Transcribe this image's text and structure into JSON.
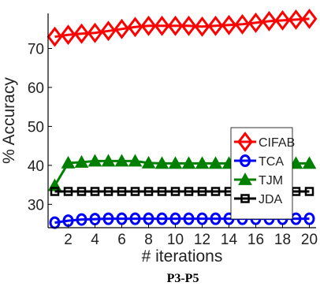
{
  "chart_data": {
    "type": "line",
    "title": "",
    "caption": "P3-P5",
    "xlabel": "# iterations",
    "ylabel": "% Accuracy",
    "xlim": [
      0.5,
      20.5
    ],
    "ylim": [
      24,
      79
    ],
    "x": [
      1,
      2,
      3,
      4,
      5,
      6,
      7,
      8,
      9,
      10,
      11,
      12,
      13,
      14,
      15,
      16,
      17,
      18,
      19,
      20
    ],
    "xticks": [
      2,
      4,
      6,
      8,
      10,
      12,
      14,
      16,
      18,
      20
    ],
    "yticks": [
      30,
      40,
      50,
      60,
      70
    ],
    "grid": false,
    "legend_position": "lower-right",
    "series": [
      {
        "name": "CIFAB",
        "color": "#ff0000",
        "marker": "diamond",
        "values": [
          73,
          73.5,
          73.8,
          74,
          74.5,
          75,
          75.5,
          75.8,
          75.8,
          75.8,
          75.8,
          75.6,
          75.8,
          76,
          76.2,
          76.6,
          77,
          77.2,
          77.4,
          77.6
        ]
      },
      {
        "name": "TCA",
        "color": "#0000ff",
        "marker": "circle",
        "values": [
          25.3,
          25.8,
          26.1,
          26.2,
          26.3,
          26.3,
          26.3,
          26.3,
          26.3,
          26.3,
          26.3,
          26.3,
          26.3,
          26.3,
          26.3,
          26.3,
          26.3,
          26.3,
          26.3,
          26.3
        ]
      },
      {
        "name": "TJM",
        "color": "#008000",
        "marker": "triangle",
        "values": [
          34.8,
          40.6,
          40.8,
          41.1,
          41.1,
          41.1,
          41.1,
          40.6,
          40.5,
          40.5,
          40.5,
          40.5,
          40.5,
          40.5,
          40.5,
          40.5,
          40.5,
          40.5,
          40.5,
          40.5
        ]
      },
      {
        "name": "JDA",
        "color": "#000000",
        "marker": "square",
        "values": [
          33.3,
          33.3,
          33.3,
          33.3,
          33.3,
          33.3,
          33.3,
          33.3,
          33.3,
          33.3,
          33.3,
          33.3,
          33.3,
          33.3,
          33.3,
          33.3,
          33.3,
          33.3,
          33.3,
          33.3
        ]
      }
    ]
  }
}
